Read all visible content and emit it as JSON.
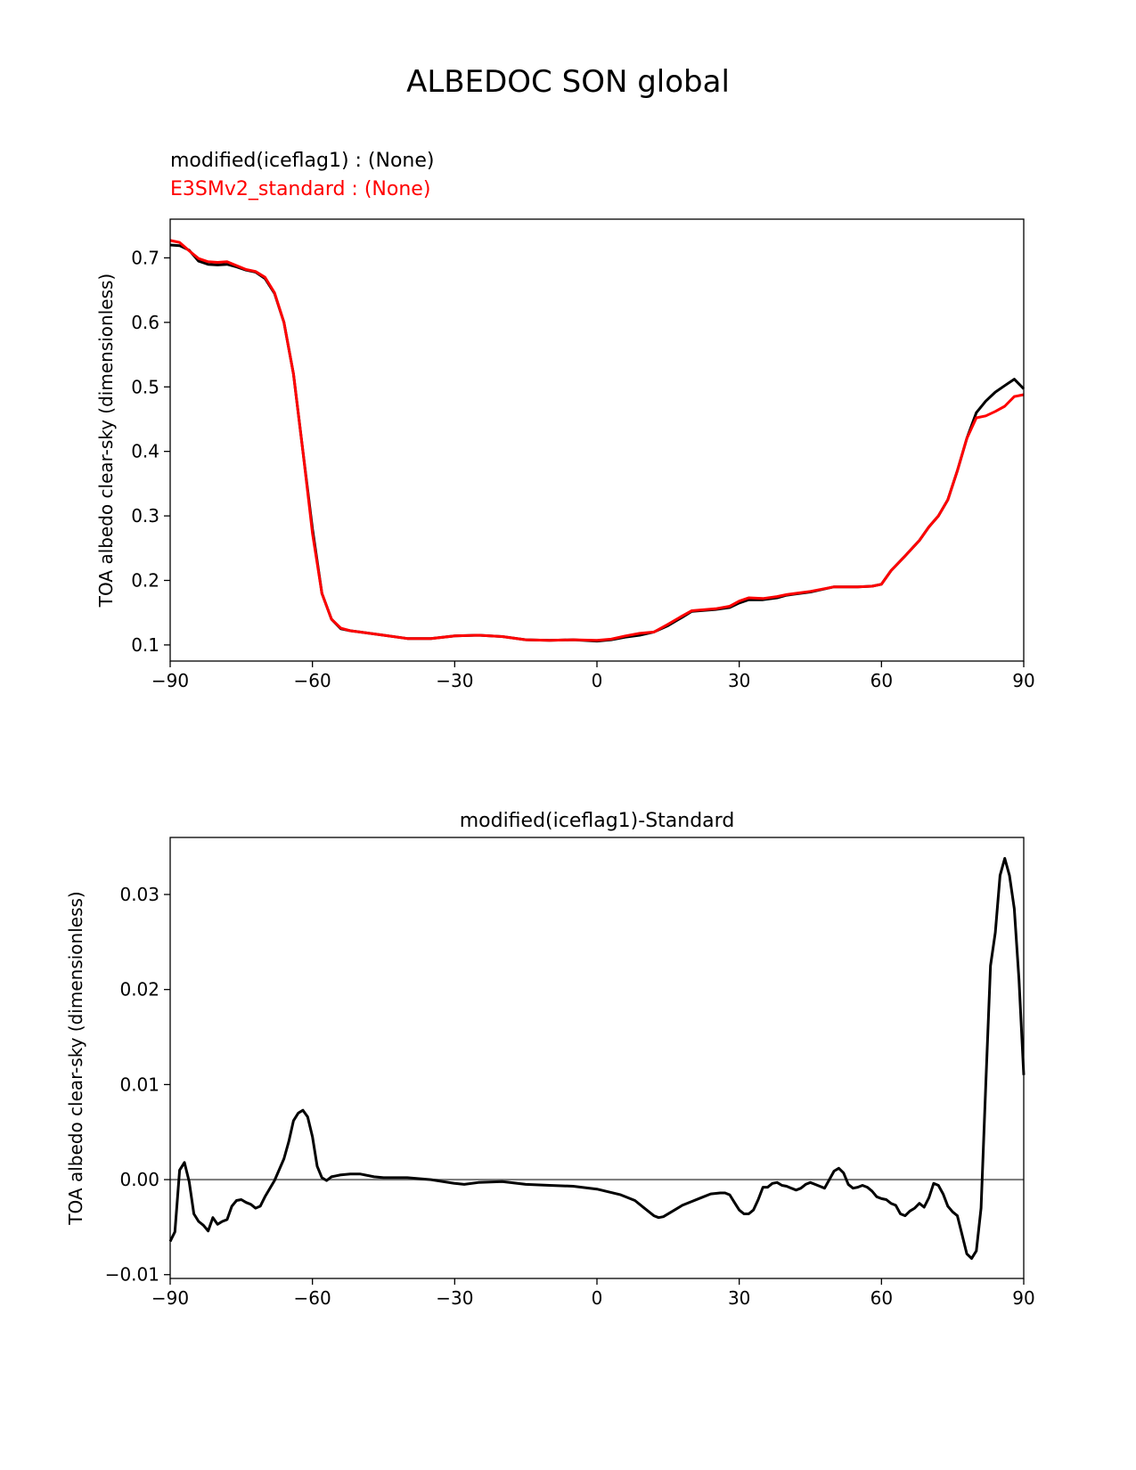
{
  "figure_title": "ALBEDOC SON global",
  "colors": {
    "test": "#000000",
    "reference": "#ff0000",
    "zero_line": "#808080"
  },
  "chart_data": [
    {
      "type": "line",
      "title": "",
      "legend": [
        {
          "label": "modified(iceflag1) :   (None)",
          "color": "#000000"
        },
        {
          "label": "E3SMv2_standard :  (None)",
          "color": "#ff0000"
        }
      ],
      "legend_placement": "above-top-left",
      "xlabel": "",
      "ylabel": "TOA albedo clear-sky (dimensionless)",
      "xlim": [
        -90,
        90
      ],
      "ylim": [
        0.075,
        0.76
      ],
      "xticks": [
        -90,
        -60,
        -30,
        0,
        30,
        60,
        90
      ],
      "xtick_labels": [
        "−90",
        "−60",
        "−30",
        "0",
        "30",
        "60",
        "90"
      ],
      "yticks": [
        0.1,
        0.2,
        0.3,
        0.4,
        0.5,
        0.6,
        0.7
      ],
      "ytick_labels": [
        "0.1",
        "0.2",
        "0.3",
        "0.4",
        "0.5",
        "0.6",
        "0.7"
      ],
      "grid": false,
      "series": [
        {
          "name": "modified(iceflag1)",
          "color": "#000000",
          "x": [
            -90,
            -88,
            -86,
            -84,
            -82,
            -80,
            -78,
            -76,
            -74,
            -72,
            -70,
            -68,
            -66,
            -64,
            -62,
            -60,
            -58,
            -56,
            -54,
            -52,
            -50,
            -45,
            -40,
            -35,
            -30,
            -25,
            -20,
            -15,
            -10,
            -5,
            0,
            3,
            6,
            9,
            12,
            15,
            18,
            20,
            25,
            28,
            30,
            32,
            35,
            38,
            40,
            45,
            50,
            55,
            58,
            60,
            62,
            65,
            68,
            70,
            72,
            74,
            76,
            78,
            80,
            82,
            84,
            86,
            88,
            90
          ],
          "y": [
            0.72,
            0.719,
            0.712,
            0.695,
            0.69,
            0.689,
            0.69,
            0.686,
            0.681,
            0.678,
            0.668,
            0.645,
            0.6,
            0.52,
            0.4,
            0.28,
            0.18,
            0.14,
            0.125,
            0.122,
            0.12,
            0.115,
            0.11,
            0.11,
            0.114,
            0.115,
            0.113,
            0.108,
            0.107,
            0.108,
            0.106,
            0.108,
            0.112,
            0.115,
            0.12,
            0.13,
            0.143,
            0.152,
            0.155,
            0.158,
            0.165,
            0.17,
            0.17,
            0.173,
            0.177,
            0.182,
            0.19,
            0.19,
            0.191,
            0.194,
            0.215,
            0.238,
            0.262,
            0.283,
            0.3,
            0.325,
            0.37,
            0.42,
            0.46,
            0.478,
            0.492,
            0.502,
            0.512,
            0.497
          ]
        },
        {
          "name": "E3SMv2_standard",
          "color": "#ff0000",
          "x": [
            -90,
            -88,
            -86,
            -84,
            -82,
            -80,
            -78,
            -76,
            -74,
            -72,
            -70,
            -68,
            -66,
            -64,
            -62,
            -60,
            -58,
            -56,
            -54,
            -52,
            -50,
            -45,
            -40,
            -35,
            -30,
            -25,
            -20,
            -15,
            -10,
            -5,
            0,
            3,
            6,
            9,
            12,
            15,
            18,
            20,
            25,
            28,
            30,
            32,
            35,
            38,
            40,
            45,
            50,
            55,
            58,
            60,
            62,
            65,
            68,
            70,
            72,
            74,
            76,
            78,
            80,
            82,
            84,
            86,
            88,
            90
          ],
          "y": [
            0.727,
            0.724,
            0.711,
            0.699,
            0.694,
            0.693,
            0.694,
            0.688,
            0.682,
            0.679,
            0.67,
            0.646,
            0.6,
            0.52,
            0.4,
            0.273,
            0.18,
            0.14,
            0.126,
            0.122,
            0.12,
            0.115,
            0.11,
            0.11,
            0.114,
            0.115,
            0.113,
            0.108,
            0.107,
            0.108,
            0.107,
            0.109,
            0.114,
            0.118,
            0.12,
            0.132,
            0.145,
            0.153,
            0.156,
            0.16,
            0.168,
            0.173,
            0.172,
            0.175,
            0.178,
            0.183,
            0.19,
            0.19,
            0.191,
            0.194,
            0.215,
            0.238,
            0.262,
            0.283,
            0.3,
            0.325,
            0.37,
            0.42,
            0.452,
            0.455,
            0.462,
            0.47,
            0.485,
            0.488
          ]
        }
      ]
    },
    {
      "type": "line",
      "title": "modified(iceflag1)-Standard",
      "xlabel": "",
      "ylabel": "TOA albedo clear-sky (dimensionless)",
      "xlim": [
        -90,
        90
      ],
      "ylim": [
        -0.0104,
        0.036
      ],
      "xticks": [
        -90,
        -60,
        -30,
        0,
        30,
        60,
        90
      ],
      "xtick_labels": [
        "−90",
        "−60",
        "−30",
        "0",
        "30",
        "60",
        "90"
      ],
      "yticks": [
        -0.01,
        0.0,
        0.01,
        0.02,
        0.03
      ],
      "ytick_labels": [
        "−0.01",
        "0.00",
        "0.01",
        "0.02",
        "0.03"
      ],
      "grid": false,
      "zero_line": true,
      "series": [
        {
          "name": "modified(iceflag1)-Standard",
          "color": "#000000",
          "x": [
            -90,
            -89,
            -88,
            -87,
            -86,
            -85,
            -84,
            -83,
            -82,
            -81,
            -80,
            -79,
            -78,
            -77,
            -76,
            -75,
            -74,
            -73,
            -72,
            -71,
            -70,
            -68,
            -66,
            -65,
            -64,
            -63,
            -62,
            -61,
            -60,
            -59,
            -58,
            -57,
            -56,
            -55,
            -54,
            -52,
            -50,
            -47,
            -45,
            -42,
            -40,
            -35,
            -30,
            -28,
            -25,
            -20,
            -15,
            -10,
            -5,
            0,
            5,
            8,
            10,
            12,
            13,
            14,
            16,
            18,
            20,
            22,
            24,
            26,
            27,
            28,
            29,
            30,
            31,
            32,
            33,
            34,
            35,
            36,
            37,
            38,
            39,
            40,
            41,
            42,
            43,
            44,
            45,
            46,
            47,
            48,
            49,
            50,
            51,
            52,
            53,
            54,
            55,
            56,
            57,
            58,
            59,
            60,
            61,
            62,
            63,
            64,
            65,
            66,
            67,
            68,
            69,
            70,
            71,
            72,
            73,
            74,
            75,
            76,
            77,
            78,
            79,
            80,
            81,
            82,
            83,
            84,
            85,
            86,
            87,
            88,
            89,
            90
          ],
          "y": [
            -0.0065,
            -0.0055,
            0.001,
            0.0018,
            -0.0002,
            -0.0036,
            -0.0044,
            -0.0048,
            -0.0054,
            -0.004,
            -0.0047,
            -0.0044,
            -0.0042,
            -0.0028,
            -0.0022,
            -0.0021,
            -0.0024,
            -0.0026,
            -0.003,
            -0.0028,
            -0.0018,
            -0.0001,
            0.0022,
            0.004,
            0.0062,
            0.007,
            0.0073,
            0.0066,
            0.0045,
            0.0014,
            0.0002,
            -0.0001,
            0.0003,
            0.0004,
            0.0005,
            0.0006,
            0.0006,
            0.0003,
            0.0002,
            0.0002,
            0.0002,
            0.0,
            -0.0004,
            -0.0005,
            -0.0003,
            -0.0002,
            -0.0005,
            -0.0006,
            -0.0007,
            -0.001,
            -0.0016,
            -0.0022,
            -0.003,
            -0.0038,
            -0.004,
            -0.0039,
            -0.0033,
            -0.0027,
            -0.0023,
            -0.0019,
            -0.0015,
            -0.0014,
            -0.0014,
            -0.0016,
            -0.0024,
            -0.0032,
            -0.0036,
            -0.0036,
            -0.0032,
            -0.0021,
            -0.0008,
            -0.0008,
            -0.0004,
            -0.0003,
            -0.0006,
            -0.0007,
            -0.0009,
            -0.0011,
            -0.0009,
            -0.0005,
            -0.0003,
            -0.0005,
            -0.0007,
            -0.0009,
            0.0,
            0.0009,
            0.0012,
            0.0007,
            -0.0005,
            -0.0009,
            -0.0008,
            -0.0006,
            -0.0008,
            -0.0012,
            -0.0018,
            -0.002,
            -0.0021,
            -0.0025,
            -0.0027,
            -0.0036,
            -0.0038,
            -0.0033,
            -0.003,
            -0.0025,
            -0.0029,
            -0.0019,
            -0.0004,
            -0.0006,
            -0.0015,
            -0.0028,
            -0.0034,
            -0.0038,
            -0.0058,
            -0.0078,
            -0.0083,
            -0.0075,
            -0.003,
            0.01,
            0.0225,
            0.026,
            0.032,
            0.0338,
            0.032,
            0.0285,
            0.021,
            0.011
          ]
        }
      ]
    }
  ]
}
